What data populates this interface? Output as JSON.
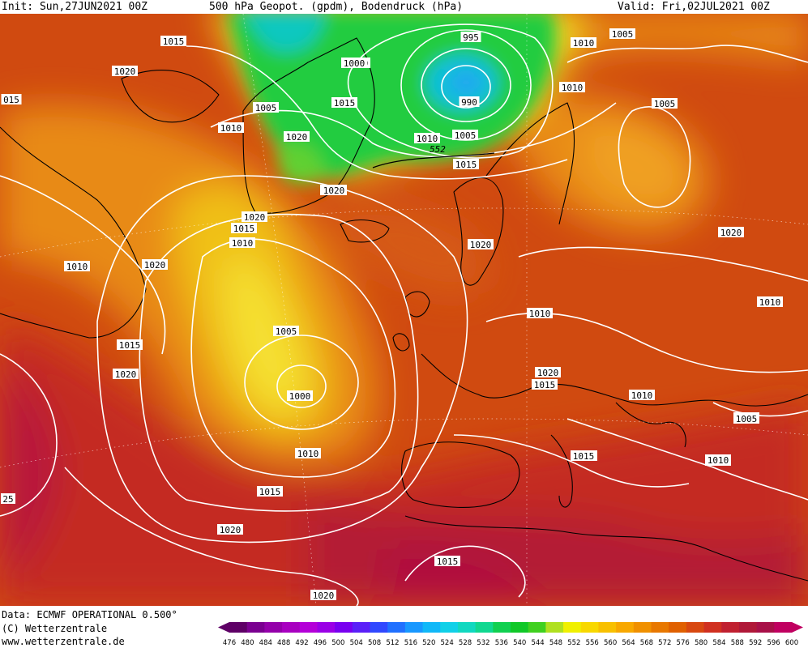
{
  "header": {
    "init_label": "Init: Sun,27JUN2021 00Z",
    "title": "500 hPa Geopot. (gpdm), Bodendruck (hPa)",
    "valid_label": "Valid: Fri,02JUL2021 00Z"
  },
  "footer": {
    "data_line": "Data: ECMWF OPERATIONAL 0.500°",
    "copyright_line": "(C) Wetterzentrale",
    "url_line": "www.wetterzentrale.de"
  },
  "isobar_labels": [
    "1015",
    "1020",
    "015",
    "1010",
    "1005",
    "1000",
    "1020",
    "1010",
    "1015",
    "1000",
    "995",
    "990",
    "1005",
    "1010",
    "1005",
    "1010",
    "1015",
    "1015",
    "1005",
    "1020",
    "1020",
    "1015",
    "1010",
    "1020",
    "1010",
    "1020",
    "1015",
    "1010",
    "1010",
    "1005",
    "1000",
    "1010",
    "1015",
    "1020",
    "1015",
    "1020",
    "1020",
    "1015",
    "1010",
    "1010",
    "1005",
    "1010",
    "25",
    "1015",
    "1020",
    "1015",
    "1020",
    "1010",
    "1010",
    "1010",
    "1005"
  ],
  "geopotential_labels": [
    "552"
  ],
  "legend": {
    "ticks": [
      "476",
      "480",
      "484",
      "488",
      "492",
      "496",
      "500",
      "504",
      "508",
      "512",
      "516",
      "520",
      "524",
      "528",
      "532",
      "536",
      "540",
      "544",
      "548",
      "552",
      "556",
      "560",
      "564",
      "568",
      "572",
      "576",
      "580",
      "584",
      "588",
      "592",
      "596",
      "600"
    ],
    "colors": [
      "#5e0066",
      "#7a0090",
      "#9400aa",
      "#a800c0",
      "#b400d8",
      "#9a00e6",
      "#7800f0",
      "#5a20f8",
      "#3048ff",
      "#2070ff",
      "#1898ff",
      "#10b8f8",
      "#10d0e8",
      "#10d8c0",
      "#10d890",
      "#10d050",
      "#10c828",
      "#40d020",
      "#b0e020",
      "#f0f000",
      "#f8d800",
      "#f8c000",
      "#f8a800",
      "#f09000",
      "#e87800",
      "#e06000",
      "#d84810",
      "#d03020",
      "#c02030",
      "#b01838",
      "#a81048",
      "#c00060"
    ]
  }
}
